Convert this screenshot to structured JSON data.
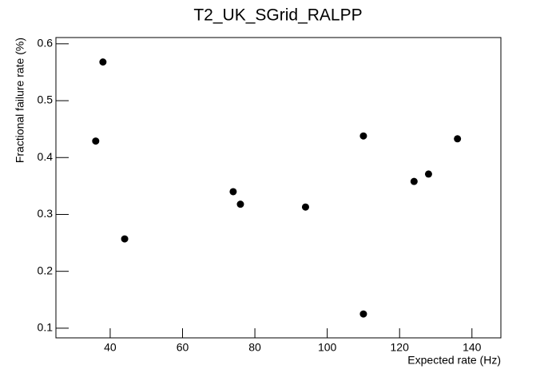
{
  "chart_data": {
    "type": "scatter",
    "title": "T2_UK_SGrid_RALPP",
    "x_label": "Expected rate (Hz)",
    "y_label": "Fractional failure rate (%)",
    "x": [
      36,
      38,
      44,
      74,
      76,
      94,
      110,
      110,
      124,
      128,
      136
    ],
    "values": [
      0.429,
      0.568,
      0.257,
      0.34,
      0.318,
      0.313,
      0.438,
      0.125,
      0.358,
      0.371,
      0.433
    ],
    "color": "#000000",
    "xlim": [
      25,
      148
    ],
    "xticks": [
      40,
      60,
      80,
      100,
      120,
      140
    ],
    "ylim": [
      0.083,
      0.611
    ],
    "yticks": [
      0.1,
      0.2,
      0.3,
      0.4,
      0.5,
      0.6
    ],
    "grid": false
  }
}
